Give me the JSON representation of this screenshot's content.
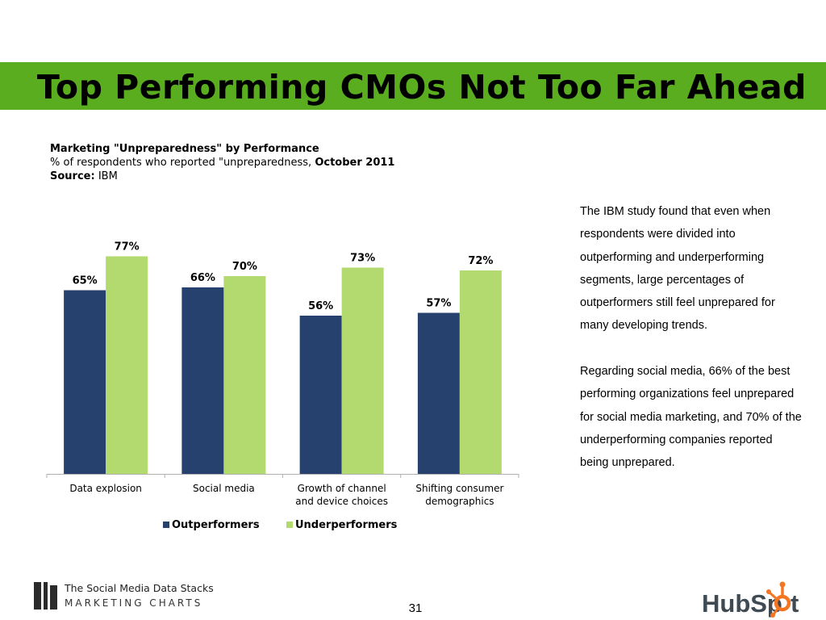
{
  "slide": {
    "title": "Top Performing CMOs Not Too Far Ahead",
    "page_number": "31",
    "colors": {
      "title_bar": "#5aad1f",
      "outperformers": "#27416f",
      "underperformers": "#b2da6e"
    }
  },
  "chart_header": {
    "title": "Marketing \"Unpreparedness\" by Performance",
    "subtitle_prefix": "% of respondents who reported \"unpreparedness, ",
    "subtitle_date": "October 2011",
    "source_label": "Source:",
    "source_value": "IBM"
  },
  "chart_data": {
    "type": "bar",
    "title": "Marketing \"Unpreparedness\" by Performance",
    "categories": [
      [
        "Data explosion"
      ],
      [
        "Social media"
      ],
      [
        "Growth of channel",
        "and device choices"
      ],
      [
        "Shifting consumer",
        "demographics"
      ]
    ],
    "series": [
      {
        "name": "Outperformers",
        "values": [
          65,
          66,
          56,
          57
        ],
        "labels": [
          "65%",
          "66%",
          "56%",
          "57%"
        ],
        "color": "#27416f"
      },
      {
        "name": "Underperformers",
        "values": [
          77,
          70,
          73,
          72
        ],
        "labels": [
          "77%",
          "70%",
          "73%",
          "72%"
        ],
        "color": "#b2da6e"
      }
    ],
    "ylim": [
      0,
      100
    ],
    "grid": false,
    "legend": "bottom"
  },
  "body_text": {
    "paragraph1": "The IBM study found that even when respondents were divided into outperforming and underperforming segments, large percentages of outperformers still feel unprepared for many developing trends.",
    "paragraph2": "Regarding social media, 66% of the best performing organizations feel unprepared for social media marketing, and 70% of the underperforming companies reported being unprepared."
  },
  "footer": {
    "brand_line1": "The Social Media Data Stacks",
    "brand_line2": "MARKETING CHARTS",
    "hubspot_logo_text": "HubSpot"
  }
}
